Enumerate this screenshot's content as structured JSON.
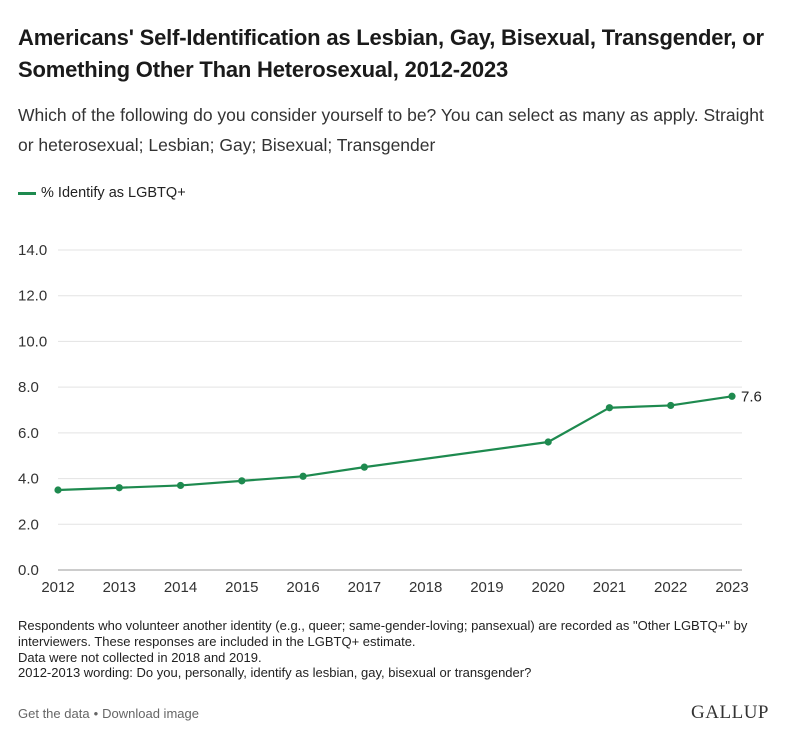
{
  "chart_data": {
    "type": "line",
    "title": "Americans' Self-Identification as Lesbian, Gay, Bisexual, Transgender, or Something Other Than Heterosexual, 2012-2023",
    "subtitle": "Which of the following do you consider yourself to be? You can select as many as apply. Straight or heterosexual; Lesbian; Gay; Bisexual; Transgender",
    "x": [
      2012,
      2013,
      2014,
      2015,
      2016,
      2017,
      2020,
      2021,
      2022,
      2023
    ],
    "x_ticks": [
      "2012",
      "2013",
      "2014",
      "2015",
      "2016",
      "2017",
      "2018",
      "2019",
      "2020",
      "2021",
      "2022",
      "2023"
    ],
    "xlim": [
      2012,
      2023
    ],
    "ylim": [
      0,
      14
    ],
    "y_ticks": [
      "0.0",
      "2.0",
      "4.0",
      "6.0",
      "8.0",
      "10.0",
      "12.0",
      "14.0"
    ],
    "series": [
      {
        "name": "% Identify as LGBTQ+",
        "color": "#1e8a4f",
        "values": [
          3.5,
          3.6,
          3.7,
          3.9,
          4.1,
          4.5,
          5.6,
          7.1,
          7.2,
          7.6
        ]
      }
    ],
    "data_labels": [
      {
        "x": 2023,
        "text": "7.6"
      }
    ],
    "grid": "horizontal",
    "legend": "top-left"
  },
  "notes": [
    "Respondents who volunteer another identity (e.g., queer; same-gender-loving; pansexual) are recorded as \"Other LGBTQ+\" by interviewers. These responses are included in the LGBTQ+ estimate.",
    "Data were not collected in 2018 and 2019.",
    "2012-2013 wording: Do you, personally, identify as lesbian, gay, bisexual or transgender?"
  ],
  "footer": {
    "get_data": "Get the data",
    "separator": "•",
    "download": "Download image",
    "logo": "GALLUP"
  }
}
